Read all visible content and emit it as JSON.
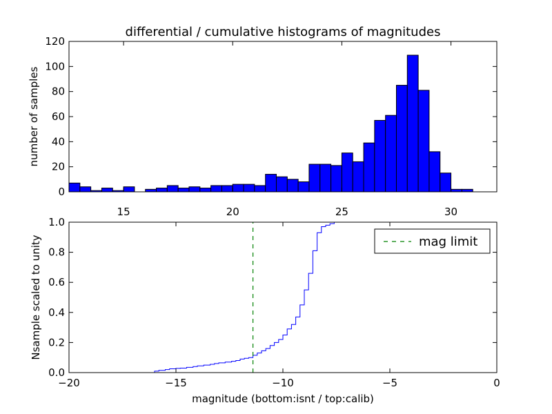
{
  "chart_data": [
    {
      "type": "bar",
      "title": "differential / cumulative histograms of magnitudes",
      "xlabel": "",
      "ylabel": "number of samples",
      "xlim": [
        12.5,
        32.1
      ],
      "ylim": [
        0,
        120
      ],
      "x_ticks": [
        15,
        20,
        25,
        30
      ],
      "y_ticks": [
        0,
        20,
        40,
        60,
        80,
        100,
        120
      ],
      "x_tick_position": "bottom",
      "bar_color": "#0000ff",
      "bins": [
        {
          "x0": 12.5,
          "x1": 13.0,
          "count": 7
        },
        {
          "x0": 13.0,
          "x1": 13.5,
          "count": 4
        },
        {
          "x0": 13.5,
          "x1": 14.0,
          "count": 1
        },
        {
          "x0": 14.0,
          "x1": 14.5,
          "count": 3
        },
        {
          "x0": 14.5,
          "x1": 15.0,
          "count": 1
        },
        {
          "x0": 15.0,
          "x1": 15.5,
          "count": 4
        },
        {
          "x0": 15.5,
          "x1": 16.0,
          "count": 0
        },
        {
          "x0": 16.0,
          "x1": 16.5,
          "count": 2
        },
        {
          "x0": 16.5,
          "x1": 17.0,
          "count": 3
        },
        {
          "x0": 17.0,
          "x1": 17.5,
          "count": 5
        },
        {
          "x0": 17.5,
          "x1": 18.0,
          "count": 3
        },
        {
          "x0": 18.0,
          "x1": 18.5,
          "count": 4
        },
        {
          "x0": 18.5,
          "x1": 19.0,
          "count": 3
        },
        {
          "x0": 19.0,
          "x1": 19.5,
          "count": 5
        },
        {
          "x0": 19.5,
          "x1": 20.0,
          "count": 5
        },
        {
          "x0": 20.0,
          "x1": 20.5,
          "count": 6
        },
        {
          "x0": 20.5,
          "x1": 21.0,
          "count": 6
        },
        {
          "x0": 21.0,
          "x1": 21.5,
          "count": 5
        },
        {
          "x0": 21.5,
          "x1": 22.0,
          "count": 14
        },
        {
          "x0": 22.0,
          "x1": 22.5,
          "count": 12
        },
        {
          "x0": 22.5,
          "x1": 23.0,
          "count": 10
        },
        {
          "x0": 23.0,
          "x1": 23.5,
          "count": 8
        },
        {
          "x0": 23.5,
          "x1": 24.0,
          "count": 22
        },
        {
          "x0": 24.0,
          "x1": 24.5,
          "count": 22
        },
        {
          "x0": 24.5,
          "x1": 25.0,
          "count": 21
        },
        {
          "x0": 25.0,
          "x1": 25.5,
          "count": 31
        },
        {
          "x0": 25.5,
          "x1": 26.0,
          "count": 24
        },
        {
          "x0": 26.0,
          "x1": 26.5,
          "count": 39
        },
        {
          "x0": 26.5,
          "x1": 27.0,
          "count": 57
        },
        {
          "x0": 27.0,
          "x1": 27.5,
          "count": 61
        },
        {
          "x0": 27.5,
          "x1": 28.0,
          "count": 85
        },
        {
          "x0": 28.0,
          "x1": 28.5,
          "count": 109
        },
        {
          "x0": 28.5,
          "x1": 29.0,
          "count": 81
        },
        {
          "x0": 29.0,
          "x1": 29.5,
          "count": 32
        },
        {
          "x0": 29.5,
          "x1": 30.0,
          "count": 15
        },
        {
          "x0": 30.0,
          "x1": 30.5,
          "count": 2
        },
        {
          "x0": 30.5,
          "x1": 31.0,
          "count": 2
        }
      ]
    },
    {
      "type": "line",
      "title": "",
      "xlabel": "magnitude (bottom:isnt / top:calib)",
      "ylabel": "Nsample scaled to unity",
      "xlim": [
        -20,
        0
      ],
      "ylim": [
        0,
        1.0
      ],
      "x_ticks": [
        -20,
        -15,
        -10,
        -5,
        0
      ],
      "x_tick_labels": [
        "−20",
        "−15",
        "−10",
        "−5",
        "0"
      ],
      "y_ticks": [
        0,
        0.2,
        0.4,
        0.6,
        0.8,
        1.0
      ],
      "y_tick_labels": [
        "0.0",
        "0.2",
        "0.4",
        "0.6",
        "0.8",
        "1.0"
      ],
      "legend_position": "top-right",
      "series": [
        {
          "style": "step",
          "color": "#0000ff",
          "x": [
            -20,
            -16.0,
            -15.8,
            -15.5,
            -15.3,
            -15.0,
            -14.8,
            -14.5,
            -14.2,
            -14.0,
            -13.7,
            -13.4,
            -13.2,
            -13.0,
            -12.7,
            -12.4,
            -12.2,
            -12.0,
            -11.8,
            -11.6,
            -11.4,
            -11.2,
            -11.0,
            -10.8,
            -10.6,
            -10.4,
            -10.2,
            -10.0,
            -9.8,
            -9.6,
            -9.4,
            -9.2,
            -9.0,
            -8.8,
            -8.6,
            -8.4,
            -8.2,
            -8.0,
            -7.8,
            -7.6,
            -7.4,
            -7.2,
            -7.0,
            -6.0,
            0
          ],
          "y": [
            0,
            0.01,
            0.015,
            0.02,
            0.025,
            0.028,
            0.03,
            0.035,
            0.04,
            0.045,
            0.05,
            0.055,
            0.06,
            0.065,
            0.07,
            0.075,
            0.08,
            0.09,
            0.095,
            0.1,
            0.115,
            0.13,
            0.145,
            0.16,
            0.18,
            0.2,
            0.22,
            0.25,
            0.29,
            0.32,
            0.37,
            0.45,
            0.55,
            0.66,
            0.81,
            0.93,
            0.97,
            0.98,
            0.99,
            1.0,
            1.0,
            1.0,
            1.0,
            1.0,
            1.0
          ]
        },
        {
          "name": "mag limit",
          "style": "dashed",
          "color": "#008000",
          "x": [
            -11.4,
            -11.4
          ],
          "y": [
            0,
            1.0
          ]
        }
      ]
    }
  ]
}
